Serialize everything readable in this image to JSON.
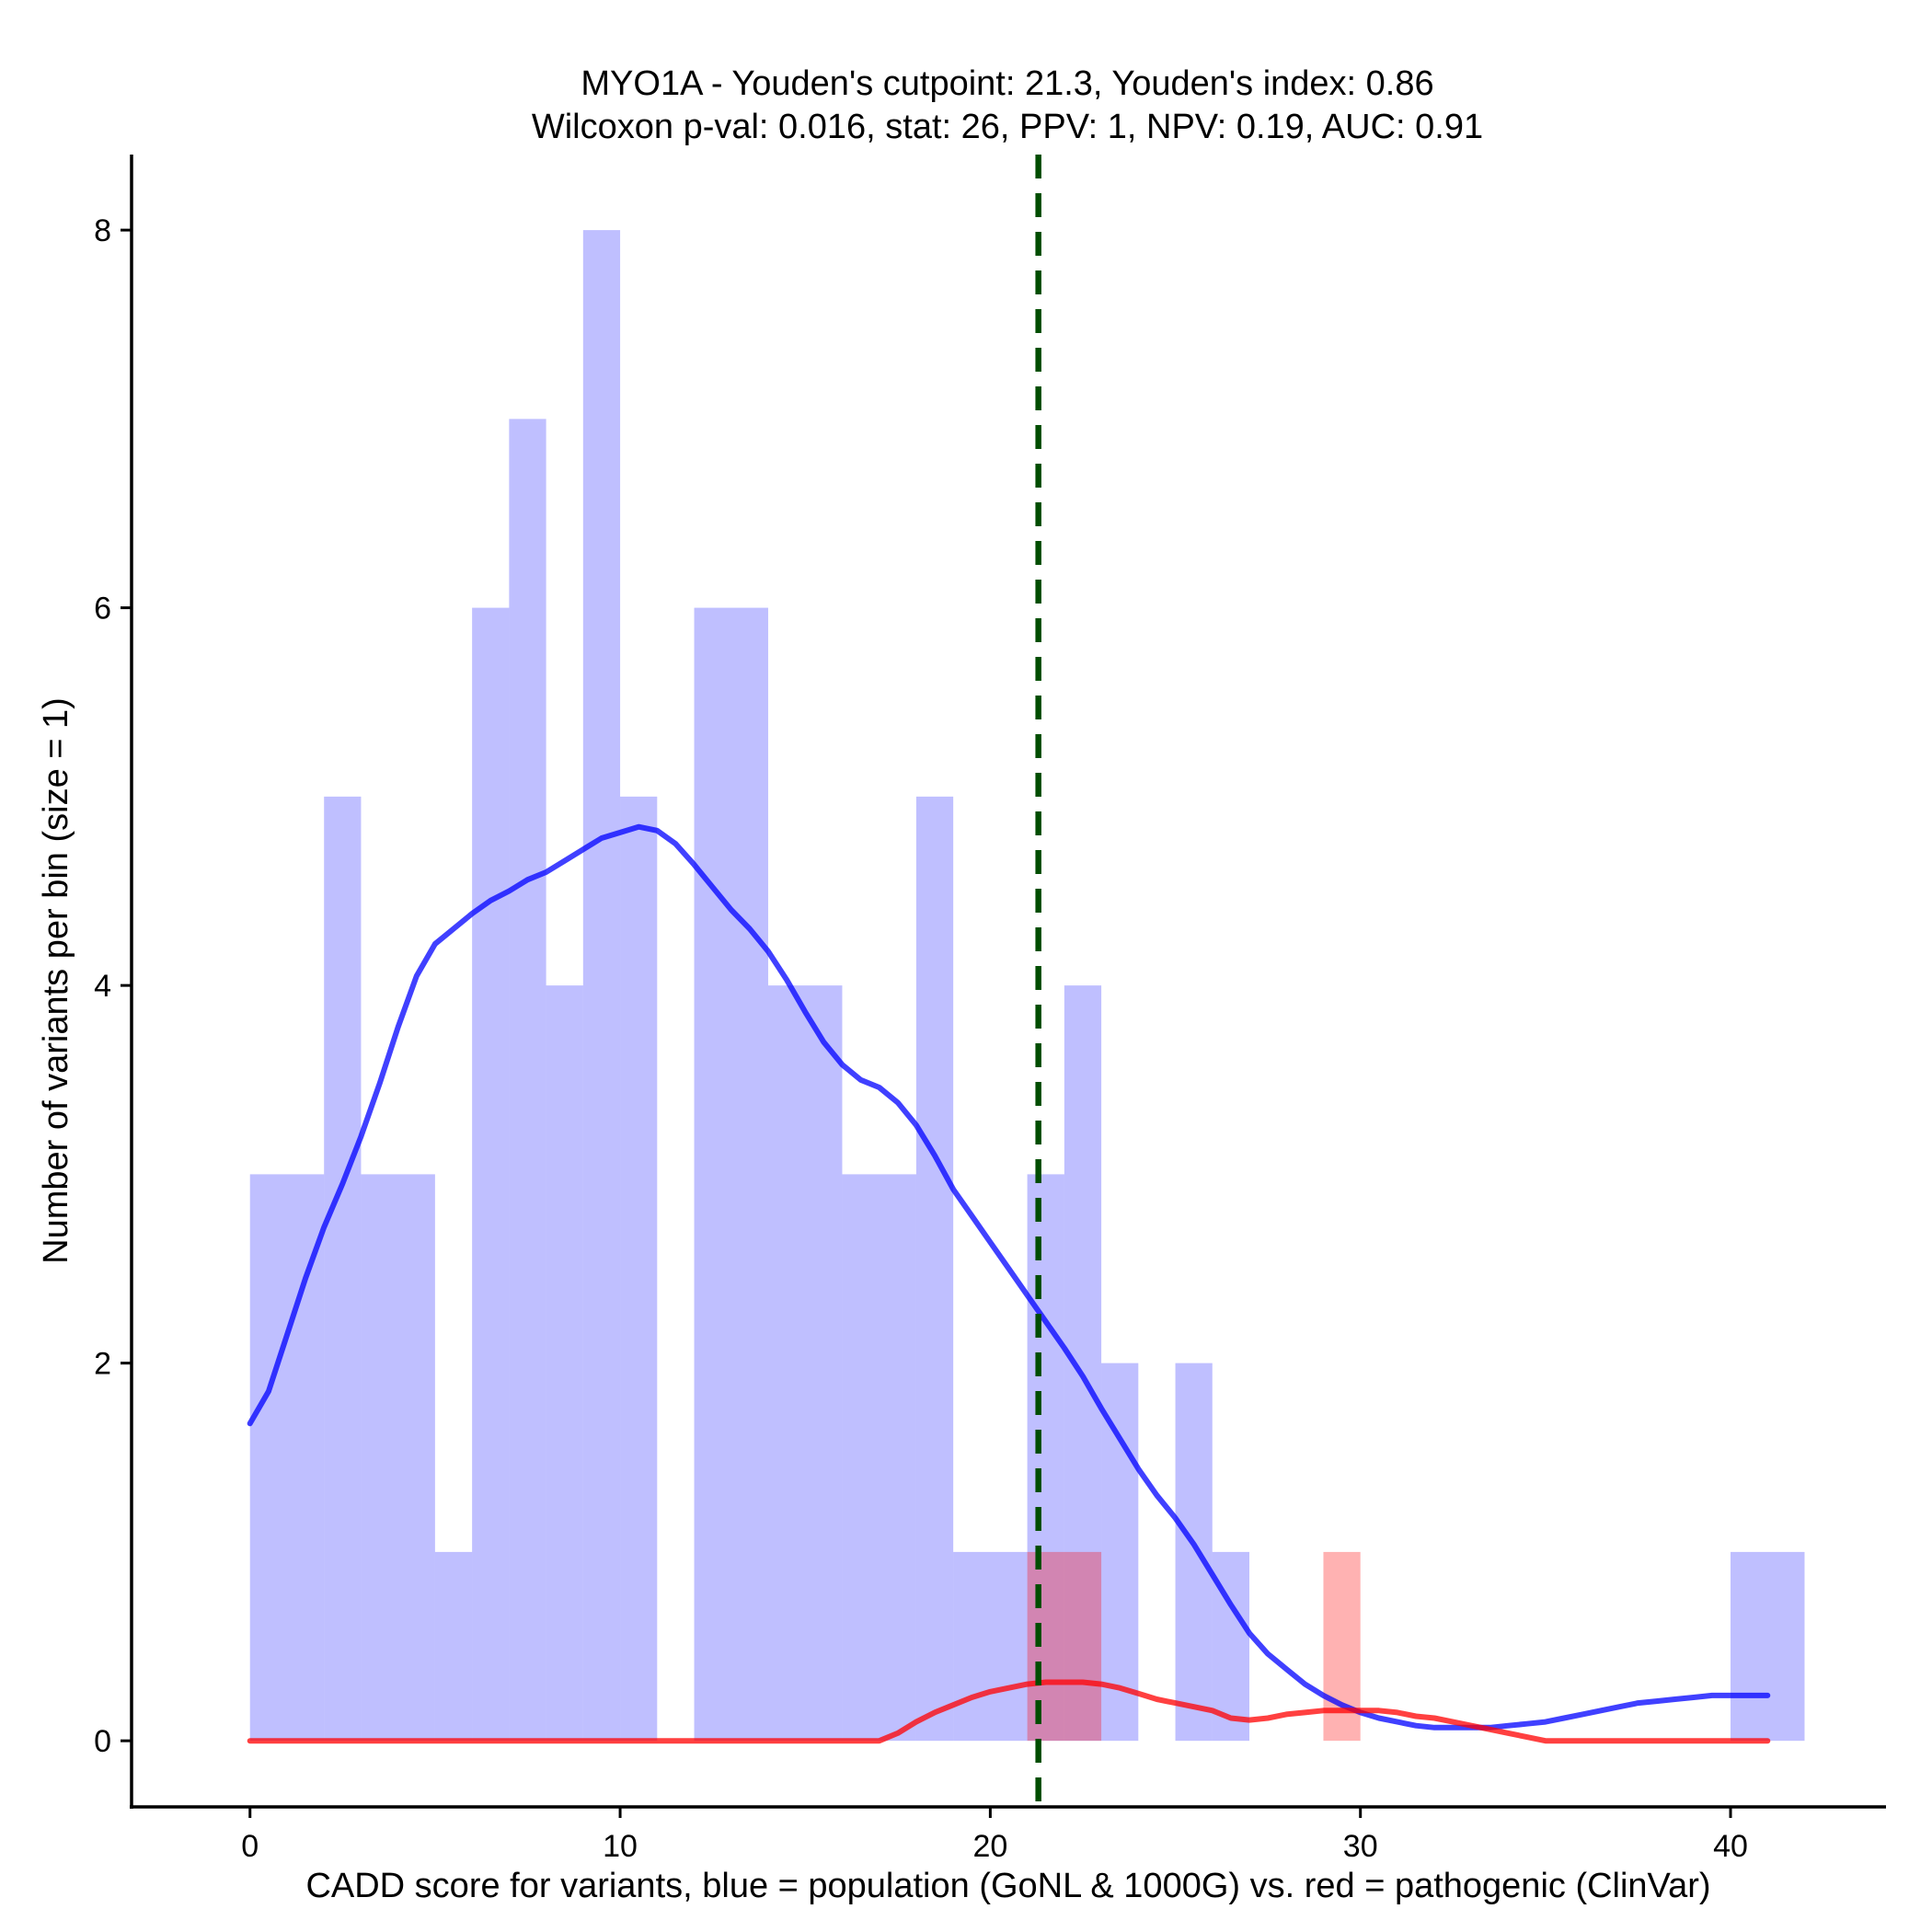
{
  "chart_data": {
    "type": "bar",
    "title": "MYO1A - Youden's cutpoint: 21.3, Youden's index: 0.86",
    "subtitle": "Wilcoxon p-val: 0.016, stat: 26, PPV: 1, NPV: 0.19, AUC: 0.91",
    "xlabel": "CADD score for variants, blue = population (GoNL & 1000G) vs. red = pathogenic (ClinVar)",
    "ylabel": "Number of variants per bin (size = 1)",
    "xlim": [
      -3.2,
      44.2
    ],
    "ylim": [
      -0.35,
      8.4
    ],
    "x_ticks": [
      0,
      10,
      20,
      30,
      40
    ],
    "x_tick_labels": [
      "0",
      "10",
      "20",
      "30",
      "40"
    ],
    "y_ticks": [
      0,
      2,
      4,
      6,
      8
    ],
    "y_tick_labels": [
      "0",
      "2",
      "4",
      "6",
      "8"
    ],
    "bin_size": 1,
    "cutpoint": 21.3,
    "series": [
      {
        "name": "population (GoNL & 1000G)",
        "color": "#0000ff",
        "opacity": 0.25,
        "bins": [
          {
            "x0": 0,
            "x1": 2,
            "count": 3
          },
          {
            "x0": 2,
            "x1": 3,
            "count": 5
          },
          {
            "x0": 3,
            "x1": 5,
            "count": 3
          },
          {
            "x0": 5,
            "x1": 6,
            "count": 1
          },
          {
            "x0": 6,
            "x1": 7,
            "count": 6
          },
          {
            "x0": 7,
            "x1": 8,
            "count": 7
          },
          {
            "x0": 8,
            "x1": 9,
            "count": 4
          },
          {
            "x0": 9,
            "x1": 10,
            "count": 8
          },
          {
            "x0": 10,
            "x1": 11,
            "count": 5
          },
          {
            "x0": 12,
            "x1": 14,
            "count": 6
          },
          {
            "x0": 14,
            "x1": 16,
            "count": 4
          },
          {
            "x0": 16,
            "x1": 18,
            "count": 3
          },
          {
            "x0": 18,
            "x1": 19,
            "count": 5
          },
          {
            "x0": 19,
            "x1": 21,
            "count": 1
          },
          {
            "x0": 21,
            "x1": 22,
            "count": 3
          },
          {
            "x0": 22,
            "x1": 23,
            "count": 4
          },
          {
            "x0": 23,
            "x1": 24,
            "count": 2
          },
          {
            "x0": 25,
            "x1": 26,
            "count": 2
          },
          {
            "x0": 26,
            "x1": 27,
            "count": 1
          },
          {
            "x0": 40,
            "x1": 42,
            "count": 1
          }
        ],
        "density": [
          [
            0,
            1.68
          ],
          [
            0.5,
            1.85
          ],
          [
            1,
            2.15
          ],
          [
            1.5,
            2.45
          ],
          [
            2,
            2.72
          ],
          [
            2.5,
            2.95
          ],
          [
            3,
            3.2
          ],
          [
            3.5,
            3.48
          ],
          [
            4,
            3.78
          ],
          [
            4.5,
            4.05
          ],
          [
            5,
            4.22
          ],
          [
            5.5,
            4.3
          ],
          [
            6,
            4.38
          ],
          [
            6.5,
            4.45
          ],
          [
            7,
            4.5
          ],
          [
            7.5,
            4.56
          ],
          [
            8,
            4.6
          ],
          [
            8.5,
            4.66
          ],
          [
            9,
            4.72
          ],
          [
            9.5,
            4.78
          ],
          [
            10,
            4.81
          ],
          [
            10.5,
            4.84
          ],
          [
            11,
            4.82
          ],
          [
            11.5,
            4.75
          ],
          [
            12,
            4.64
          ],
          [
            12.5,
            4.52
          ],
          [
            13,
            4.4
          ],
          [
            13.5,
            4.3
          ],
          [
            14,
            4.18
          ],
          [
            14.5,
            4.03
          ],
          [
            15,
            3.86
          ],
          [
            15.5,
            3.7
          ],
          [
            16,
            3.58
          ],
          [
            16.5,
            3.5
          ],
          [
            17,
            3.46
          ],
          [
            17.5,
            3.38
          ],
          [
            18,
            3.26
          ],
          [
            18.5,
            3.1
          ],
          [
            19,
            2.92
          ],
          [
            19.5,
            2.78
          ],
          [
            20,
            2.64
          ],
          [
            20.5,
            2.5
          ],
          [
            21,
            2.36
          ],
          [
            21.5,
            2.22
          ],
          [
            22,
            2.08
          ],
          [
            22.5,
            1.93
          ],
          [
            23,
            1.76
          ],
          [
            23.5,
            1.6
          ],
          [
            24,
            1.44
          ],
          [
            24.5,
            1.3
          ],
          [
            25,
            1.18
          ],
          [
            25.5,
            1.04
          ],
          [
            26,
            0.88
          ],
          [
            26.5,
            0.72
          ],
          [
            27,
            0.57
          ],
          [
            27.5,
            0.46
          ],
          [
            28,
            0.38
          ],
          [
            28.5,
            0.3
          ],
          [
            29,
            0.24
          ],
          [
            29.5,
            0.19
          ],
          [
            30,
            0.15
          ],
          [
            30.5,
            0.12
          ],
          [
            31,
            0.1
          ],
          [
            31.5,
            0.08
          ],
          [
            32,
            0.07
          ],
          [
            32.5,
            0.07
          ],
          [
            33,
            0.07
          ],
          [
            33.5,
            0.07
          ],
          [
            34,
            0.08
          ],
          [
            34.5,
            0.09
          ],
          [
            35,
            0.1
          ],
          [
            35.5,
            0.12
          ],
          [
            36,
            0.14
          ],
          [
            36.5,
            0.16
          ],
          [
            37,
            0.18
          ],
          [
            37.5,
            0.2
          ],
          [
            38,
            0.21
          ],
          [
            38.5,
            0.22
          ],
          [
            39,
            0.23
          ],
          [
            39.5,
            0.24
          ],
          [
            40,
            0.24
          ],
          [
            40.5,
            0.24
          ],
          [
            41,
            0.24
          ]
        ]
      },
      {
        "name": "pathogenic (ClinVar)",
        "color": "#ff0000",
        "opacity": 0.3,
        "bins": [
          {
            "x0": 21,
            "x1": 23,
            "count": 1
          },
          {
            "x0": 29,
            "x1": 30,
            "count": 1
          }
        ],
        "density": [
          [
            0,
            0
          ],
          [
            17,
            0
          ],
          [
            17.5,
            0.04
          ],
          [
            18,
            0.1
          ],
          [
            18.5,
            0.15
          ],
          [
            19,
            0.19
          ],
          [
            19.5,
            0.23
          ],
          [
            20,
            0.26
          ],
          [
            20.5,
            0.28
          ],
          [
            21,
            0.3
          ],
          [
            21.5,
            0.31
          ],
          [
            22,
            0.31
          ],
          [
            22.5,
            0.31
          ],
          [
            23,
            0.3
          ],
          [
            23.5,
            0.28
          ],
          [
            24,
            0.25
          ],
          [
            24.5,
            0.22
          ],
          [
            25,
            0.2
          ],
          [
            25.5,
            0.18
          ],
          [
            26,
            0.16
          ],
          [
            26.5,
            0.12
          ],
          [
            27,
            0.11
          ],
          [
            27.5,
            0.12
          ],
          [
            28,
            0.14
          ],
          [
            28.5,
            0.15
          ],
          [
            29,
            0.16
          ],
          [
            29.5,
            0.16
          ],
          [
            30,
            0.16
          ],
          [
            30.5,
            0.16
          ],
          [
            31,
            0.15
          ],
          [
            31.5,
            0.13
          ],
          [
            32,
            0.12
          ],
          [
            32.5,
            0.1
          ],
          [
            33,
            0.08
          ],
          [
            33.5,
            0.06
          ],
          [
            34,
            0.04
          ],
          [
            34.5,
            0.02
          ],
          [
            35,
            0
          ],
          [
            41,
            0
          ]
        ]
      }
    ]
  }
}
